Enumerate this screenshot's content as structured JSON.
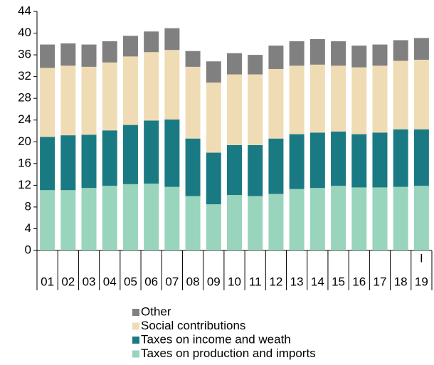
{
  "chart_data": {
    "type": "stacked_bar",
    "categories": [
      "01",
      "02",
      "03",
      "04",
      "05",
      "06",
      "07",
      "08",
      "09",
      "10",
      "11",
      "12",
      "13",
      "14",
      "15",
      "16",
      "17",
      "18",
      "19"
    ],
    "last_category_annotation": "I",
    "series": [
      {
        "name": "Taxes on production and imports",
        "color": "#99d4bc",
        "values": [
          11.1,
          11.1,
          11.5,
          11.9,
          12.2,
          12.3,
          11.7,
          10.0,
          8.5,
          10.2,
          10.0,
          10.4,
          11.3,
          11.5,
          11.9,
          11.6,
          11.6,
          11.7,
          11.9
        ]
      },
      {
        "name": "Taxes on income and weath",
        "color": "#1a7a84",
        "values": [
          9.8,
          10.1,
          9.8,
          10.2,
          10.9,
          11.6,
          12.4,
          10.6,
          9.5,
          9.2,
          9.4,
          10.2,
          10.1,
          10.2,
          10.0,
          9.8,
          10.1,
          10.6,
          10.4
        ]
      },
      {
        "name": "Social contributions",
        "color": "#f0dcb4",
        "values": [
          12.7,
          12.8,
          12.5,
          12.5,
          12.6,
          12.6,
          12.8,
          13.2,
          12.9,
          13.0,
          13.0,
          12.8,
          12.6,
          12.5,
          12.1,
          12.3,
          12.3,
          12.6,
          12.8
        ]
      },
      {
        "name": "Other",
        "color": "#808080",
        "values": [
          4.3,
          4.1,
          4.1,
          3.9,
          3.8,
          3.8,
          4.0,
          2.9,
          3.9,
          3.9,
          3.6,
          4.3,
          4.5,
          4.7,
          4.5,
          4.0,
          3.9,
          3.8,
          4.0
        ]
      }
    ],
    "ylim": [
      0,
      44
    ],
    "yticks": [
      0,
      4,
      8,
      12,
      16,
      20,
      24,
      28,
      32,
      36,
      40,
      44
    ],
    "legend": "bottom"
  }
}
